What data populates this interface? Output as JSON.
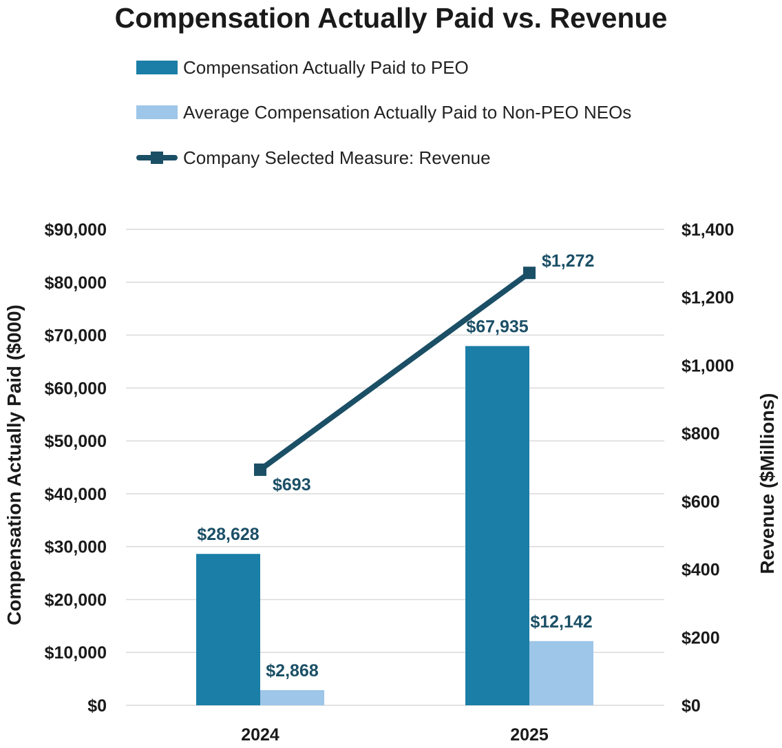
{
  "chart_data": {
    "type": "bar",
    "title": "Compensation Actually Paid vs. Revenue",
    "categories": [
      "2024",
      "2025"
    ],
    "series": [
      {
        "name": "Compensation Actually Paid to PEO",
        "type": "bar",
        "axis": "left",
        "color": "#1a7ea6",
        "values": [
          28628,
          67935
        ],
        "labels": [
          "$28,628",
          "$67,935"
        ]
      },
      {
        "name": "Average Compensation Actually Paid to Non-PEO NEOs",
        "type": "bar",
        "axis": "left",
        "color": "#9dc6e8",
        "values": [
          2868,
          12142
        ],
        "labels": [
          "$2,868",
          "$12,142"
        ]
      },
      {
        "name": "Company Selected Measure: Revenue",
        "type": "line",
        "axis": "right",
        "color": "#1b4f66",
        "marker": "square",
        "values": [
          693,
          1272
        ],
        "labels": [
          "$693",
          "$1,272"
        ]
      }
    ],
    "y_left": {
      "label": "Compensation Actually Paid ($000)",
      "min": 0,
      "max": 90000,
      "ticks": [
        0,
        10000,
        20000,
        30000,
        40000,
        50000,
        60000,
        70000,
        80000,
        90000
      ],
      "tick_labels": [
        "$0",
        "$10,000",
        "$20,000",
        "$30,000",
        "$40,000",
        "$50,000",
        "$60,000",
        "$70,000",
        "$80,000",
        "$90,000"
      ]
    },
    "y_right": {
      "label": "Revenue ($Millions)",
      "min": 0,
      "max": 1400,
      "ticks": [
        0,
        200,
        400,
        600,
        800,
        1000,
        1200,
        1400
      ],
      "tick_labels": [
        "$0",
        "$200",
        "$400",
        "$600",
        "$800",
        "$1,000",
        "$1,200",
        "$1,400"
      ]
    },
    "grid": "horizontal",
    "legend_position": "top"
  }
}
